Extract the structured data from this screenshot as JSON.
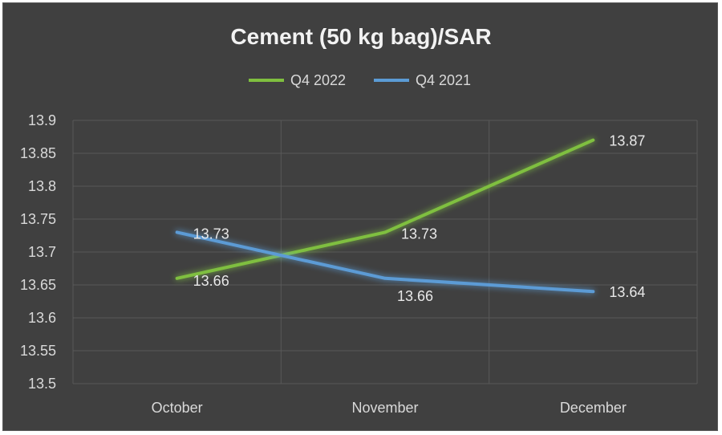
{
  "chart_data": {
    "type": "line",
    "title": "Cement (50 kg bag)/SAR",
    "categories": [
      "October",
      "November",
      "December"
    ],
    "series": [
      {
        "name": "Q4 2022",
        "values": [
          13.66,
          13.73,
          13.87
        ],
        "labels": [
          "13.66",
          "13.73",
          "13.87"
        ],
        "color": "#7fbf3f"
      },
      {
        "name": "Q4 2021",
        "values": [
          13.73,
          13.66,
          13.64
        ],
        "labels": [
          "13.73",
          "13.66",
          "13.64"
        ],
        "color": "#5b9bd5"
      }
    ],
    "yticks": [
      "13.5",
      "13.55",
      "13.6",
      "13.65",
      "13.7",
      "13.75",
      "13.8",
      "13.85",
      "13.9"
    ],
    "ylim": [
      13.5,
      13.9
    ],
    "grid": true,
    "legend_position": "top"
  },
  "colors": {
    "background": "#404040",
    "gridline": "#595959",
    "text": "#d9d9d9"
  }
}
